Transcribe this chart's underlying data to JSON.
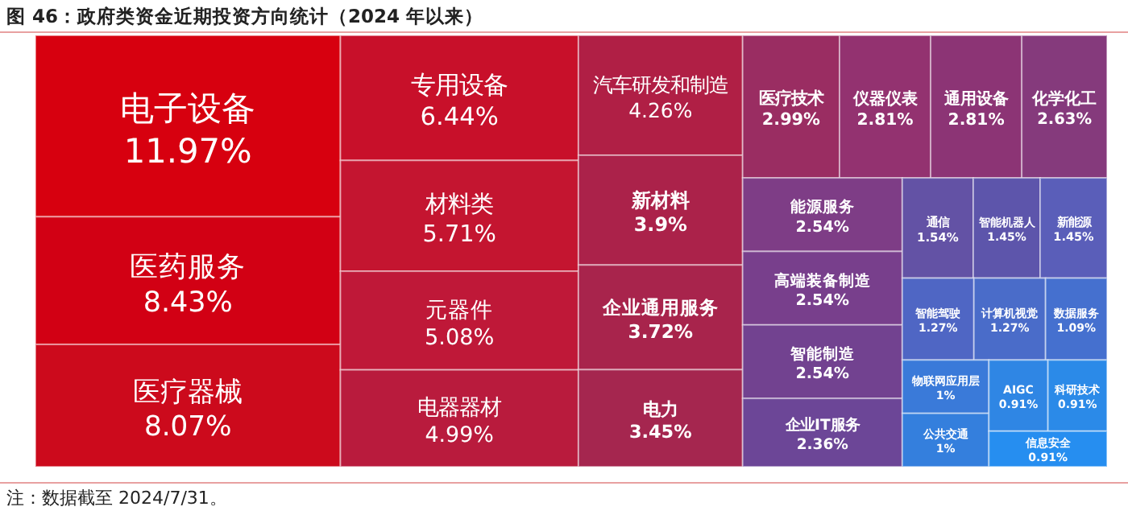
{
  "chart_data": {
    "type": "other",
    "title": "图 46：政府类资金近期投资方向统计（2024 年以来）",
    "categories": [
      "电子设备",
      "医药服务",
      "医疗器械",
      "专用设备",
      "材料类",
      "元器件",
      "电器器材",
      "汽车研发和制造",
      "新材料",
      "企业通用服务",
      "电力",
      "医疗技术",
      "仪器仪表",
      "通用设备",
      "化学化工",
      "能源服务",
      "高端装备制造",
      "智能制造",
      "企业IT服务",
      "通信",
      "智能机器人",
      "新能源",
      "智能驾驶",
      "计算机视觉",
      "数据服务",
      "物联网应用层",
      "公共交通",
      "AIGC",
      "科研技术",
      "信息安全"
    ],
    "values": [
      11.97,
      8.43,
      8.07,
      6.44,
      5.71,
      5.08,
      4.99,
      4.26,
      3.9,
      3.72,
      3.45,
      2.99,
      2.81,
      2.81,
      2.63,
      2.54,
      2.54,
      2.54,
      2.36,
      1.54,
      1.45,
      1.45,
      1.27,
      1.27,
      1.09,
      1,
      1,
      0.91,
      0.91,
      0.91
    ],
    "value_labels": [
      "11.97%",
      "8.43%",
      "8.07%",
      "6.44%",
      "5.71%",
      "5.08%",
      "4.99%",
      "4.26%",
      "3.9%",
      "3.72%",
      "3.45%",
      "2.99%",
      "2.81%",
      "2.81%",
      "2.63%",
      "2.54%",
      "2.54%",
      "2.54%",
      "2.36%",
      "1.54%",
      "1.45%",
      "1.45%",
      "1.27%",
      "1.27%",
      "1.09%",
      "1%",
      "1%",
      "0.91%",
      "0.91%",
      "0.91%"
    ],
    "colors": [
      "#d7000f",
      "#d20014",
      "#cc0a1c",
      "#c8102a",
      "#c41530",
      "#bf1838",
      "#b91b3d",
      "#b01f45",
      "#ab224a",
      "#a8244c",
      "#a5264f",
      "#9a2d62",
      "#933270",
      "#8c3475",
      "#853a7c",
      "#7e3d86",
      "#783f8c",
      "#724290",
      "#6c4697",
      "#6352a5",
      "#5d55ab",
      "#5a5eb9",
      "#4f66c4",
      "#4a6cc9",
      "#4570cf",
      "#3a7ad9",
      "#347fdd",
      "#2f86e4",
      "#2b8ae8",
      "#268ef0"
    ],
    "annotations": [
      "注：数据截至 2024/7/31。"
    ]
  }
}
